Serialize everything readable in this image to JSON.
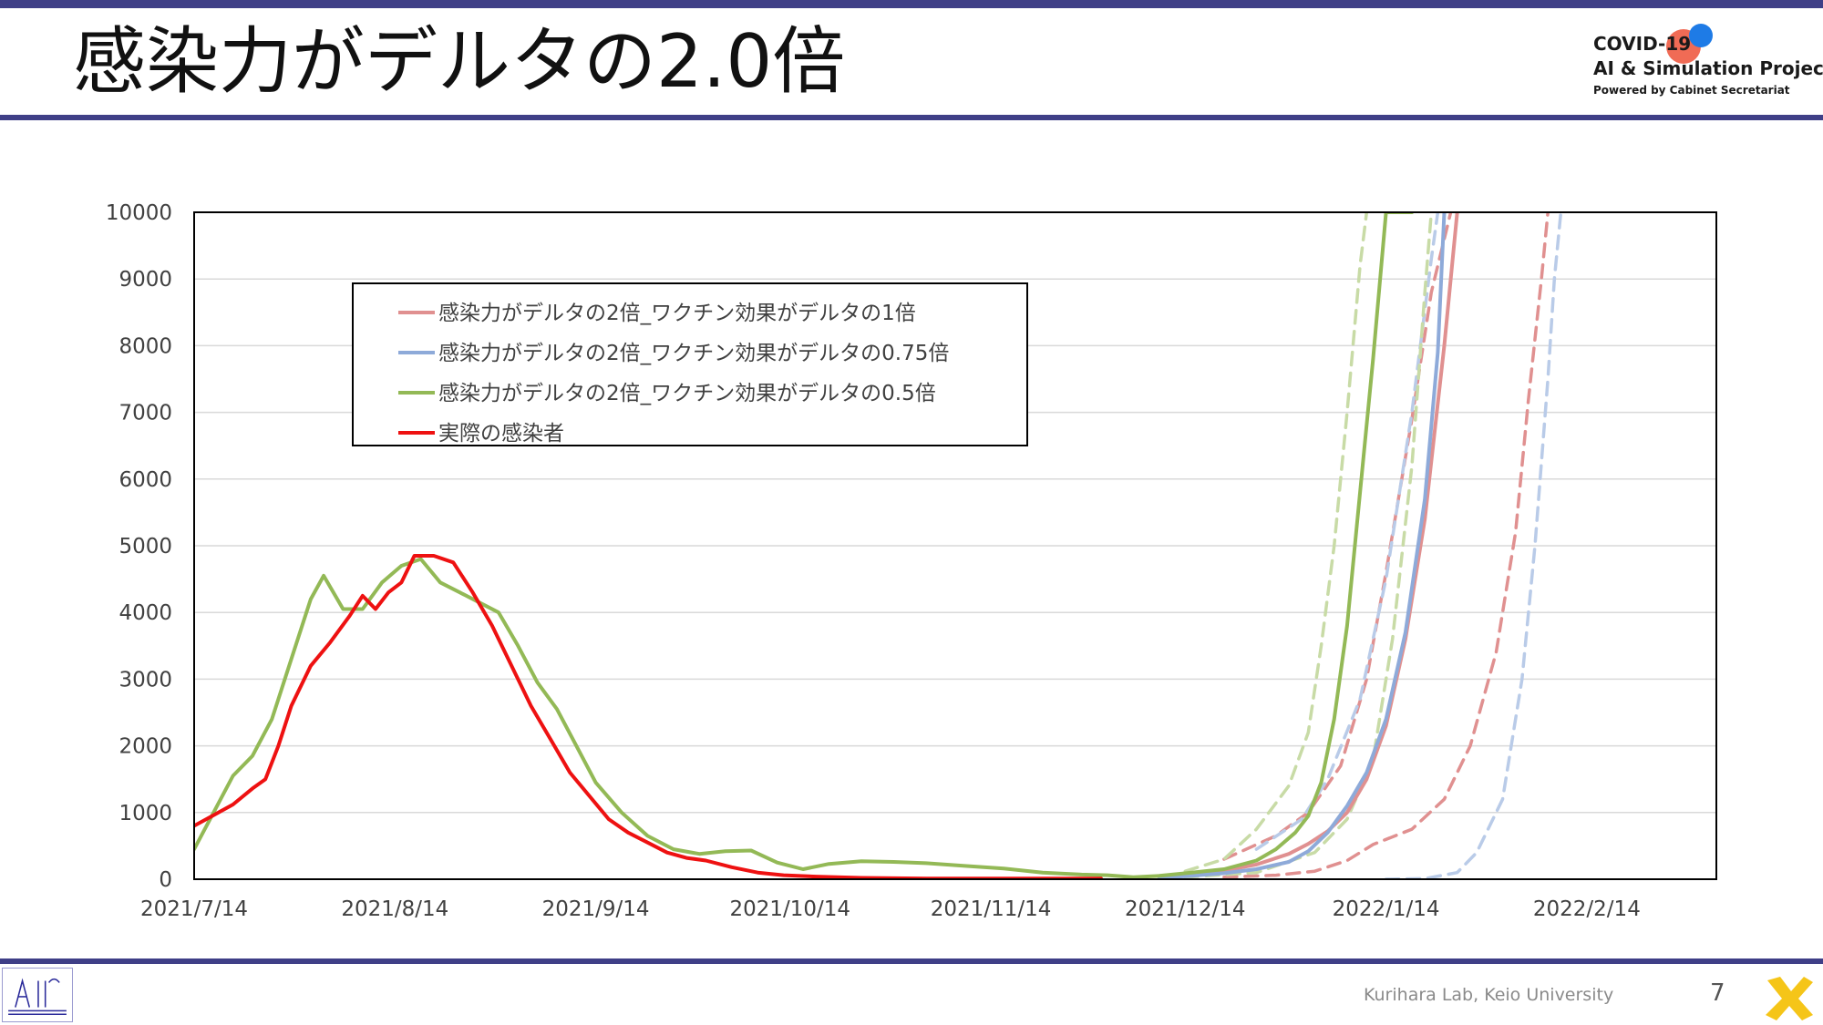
{
  "slide": {
    "title": "感染力がデルタの2.0倍",
    "page_number": "7",
    "footer_credit": "Kurihara Lab, Keio University",
    "logo": {
      "line1": "COVID-19",
      "line2": "AI & Simulation Project",
      "line3": "Powered by Cabinet Secretariat"
    },
    "colors": {
      "accent_bar": "#3f3f87",
      "logo_red": "#f06b55",
      "logo_blue": "#1e7be6",
      "corner_mark": "#f5c518"
    }
  },
  "chart_data": {
    "type": "line",
    "title": "",
    "xlabel": "",
    "ylabel": "",
    "ylim": [
      0,
      10000
    ],
    "yticks": [
      "0",
      "1000",
      "2000",
      "3000",
      "4000",
      "5000",
      "6000",
      "7000",
      "8000",
      "9000",
      "10000"
    ],
    "xticks": [
      "2021/7/14",
      "2021/8/14",
      "2021/9/14",
      "2021/10/14",
      "2021/11/14",
      "2021/12/14",
      "2022/1/14",
      "2022/2/14"
    ],
    "xlim": [
      "2021/7/14",
      "2022/3/6"
    ],
    "grid": "horizontal",
    "legend_position": "upper-left",
    "series": [
      {
        "name": "感染力がデルタの2倍_ワクチン効果がデルタの1倍",
        "color": "#e09090",
        "style": "solid",
        "x": [
          "2021/12/10",
          "2021/12/15",
          "2021/12/20",
          "2021/12/25",
          "2021/12/30",
          "2022/1/2",
          "2022/1/5",
          "2022/1/8",
          "2022/1/11",
          "2022/1/14",
          "2022/1/17",
          "2022/1/20",
          "2022/1/23",
          "2022/1/25"
        ],
        "y": [
          20,
          60,
          130,
          220,
          380,
          530,
          720,
          1000,
          1500,
          2300,
          3600,
          5400,
          8000,
          10000
        ]
      },
      {
        "name": "感染力がデルタの2倍_ワクチン効果がデルタの0.75倍",
        "color": "#8eaad9",
        "style": "solid",
        "x": [
          "2021/12/10",
          "2021/12/15",
          "2021/12/20",
          "2021/12/25",
          "2021/12/30",
          "2022/1/2",
          "2022/1/5",
          "2022/1/8",
          "2022/1/11",
          "2022/1/14",
          "2022/1/17",
          "2022/1/20",
          "2022/1/22",
          "2022/1/23"
        ],
        "y": [
          20,
          50,
          90,
          150,
          260,
          420,
          700,
          1100,
          1600,
          2400,
          3700,
          5700,
          7900,
          10000
        ]
      },
      {
        "name": "感染力がデルタの2倍_ワクチン効果がデルタの0.5倍",
        "color": "#93b956",
        "style": "solid",
        "x": [
          "2021/7/14",
          "2021/7/17",
          "2021/7/20",
          "2021/7/23",
          "2021/7/26",
          "2021/7/29",
          "2021/8/1",
          "2021/8/3",
          "2021/8/6",
          "2021/8/9",
          "2021/8/12",
          "2021/8/15",
          "2021/8/18",
          "2021/8/21",
          "2021/8/24",
          "2021/8/27",
          "2021/8/30",
          "2021/9/2",
          "2021/9/5",
          "2021/9/8",
          "2021/9/11",
          "2021/9/14",
          "2021/9/18",
          "2021/9/22",
          "2021/9/26",
          "2021/9/30",
          "2021/10/4",
          "2021/10/8",
          "2021/10/12",
          "2021/10/16",
          "2021/10/20",
          "2021/10/25",
          "2021/10/30",
          "2021/11/4",
          "2021/11/10",
          "2021/11/16",
          "2021/11/22",
          "2021/11/28",
          "2021/12/2",
          "2021/12/6",
          "2021/12/10",
          "2021/12/15",
          "2021/12/20",
          "2021/12/25",
          "2021/12/28",
          "2021/12/31",
          "2022/1/2",
          "2022/1/4",
          "2022/1/6",
          "2022/1/8",
          "2022/1/10",
          "2022/1/12",
          "2022/1/14",
          "2022/1/17",
          "2022/1/18"
        ],
        "y": [
          450,
          1000,
          1550,
          1850,
          2400,
          3300,
          4200,
          4550,
          4050,
          4050,
          4450,
          4700,
          4800,
          4450,
          4300,
          4150,
          4000,
          3500,
          2950,
          2550,
          2000,
          1450,
          1000,
          650,
          450,
          380,
          420,
          430,
          250,
          150,
          230,
          270,
          260,
          240,
          200,
          160,
          100,
          70,
          60,
          30,
          50,
          100,
          150,
          280,
          450,
          700,
          950,
          1450,
          2400,
          3800,
          5800,
          7800,
          10000,
          10000,
          10000
        ]
      },
      {
        "name": "実際の感染者",
        "color": "#ee1111",
        "style": "solid",
        "x": [
          "2021/7/14",
          "2021/7/17",
          "2021/7/20",
          "2021/7/23",
          "2021/7/25",
          "2021/7/27",
          "2021/7/29",
          "2021/8/1",
          "2021/8/4",
          "2021/8/7",
          "2021/8/9",
          "2021/8/11",
          "2021/8/13",
          "2021/8/15",
          "2021/8/17",
          "2021/8/20",
          "2021/8/23",
          "2021/8/26",
          "2021/8/29",
          "2021/9/1",
          "2021/9/4",
          "2021/9/7",
          "2021/9/10",
          "2021/9/13",
          "2021/9/16",
          "2021/9/19",
          "2021/9/22",
          "2021/9/25",
          "2021/9/28",
          "2021/10/1",
          "2021/10/5",
          "2021/10/9",
          "2021/10/13",
          "2021/10/18",
          "2021/10/25",
          "2021/11/5",
          "2021/11/15",
          "2021/11/25",
          "2021/12/1"
        ],
        "y": [
          800,
          960,
          1120,
          1360,
          1500,
          2000,
          2600,
          3200,
          3550,
          3950,
          4250,
          4050,
          4300,
          4450,
          4850,
          4850,
          4750,
          4300,
          3800,
          3200,
          2600,
          2100,
          1600,
          1250,
          900,
          700,
          550,
          400,
          320,
          280,
          180,
          100,
          60,
          40,
          20,
          10,
          10,
          10,
          10
        ]
      },
      {
        "name": "",
        "color": "#e09090",
        "style": "dashed",
        "x": [
          "2021/12/20",
          "2021/12/28",
          "2022/1/2",
          "2022/1/7",
          "2022/1/11",
          "2022/1/14",
          "2022/1/18",
          "2022/1/21",
          "2022/1/24"
        ],
        "y": [
          300,
          650,
          1000,
          1700,
          3000,
          4600,
          6900,
          8800,
          10000
        ]
      },
      {
        "name": "",
        "color": "#e09090",
        "style": "dashed",
        "x": [
          "2021/12/20",
          "2021/12/28",
          "2022/1/3",
          "2022/1/8",
          "2022/1/12",
          "2022/1/18",
          "2022/1/23",
          "2022/1/27",
          "2022/1/31",
          "2022/2/3",
          "2022/2/5",
          "2022/2/7",
          "2022/2/8"
        ],
        "y": [
          30,
          60,
          120,
          280,
          520,
          750,
          1200,
          2000,
          3400,
          5200,
          7200,
          9000,
          10000
        ]
      },
      {
        "name": "",
        "color": "#b9cbe8",
        "style": "dashed",
        "x": [
          "2021/12/25",
          "2022/1/1",
          "2022/1/5",
          "2022/1/10",
          "2022/1/14",
          "2022/1/18",
          "2022/1/21",
          "2022/1/22"
        ],
        "y": [
          450,
          900,
          1500,
          2700,
          4500,
          7000,
          9300,
          10000
        ]
      },
      {
        "name": "",
        "color": "#b9cbe8",
        "style": "dashed",
        "x": [
          "2022/1/14",
          "2022/1/20",
          "2022/1/25",
          "2022/1/28",
          "2022/2/1",
          "2022/2/4",
          "2022/2/6",
          "2022/2/8",
          "2022/2/9",
          "2022/2/10"
        ],
        "y": [
          0,
          10,
          100,
          400,
          1200,
          3000,
          5000,
          7500,
          9000,
          10000
        ]
      },
      {
        "name": "",
        "color": "#c8dba6",
        "style": "dashed",
        "x": [
          "2021/12/14",
          "2021/12/20",
          "2021/12/25",
          "2021/12/30",
          "2022/1/2",
          "2022/1/4",
          "2022/1/6",
          "2022/1/8",
          "2022/1/10",
          "2022/1/11"
        ],
        "y": [
          120,
          300,
          750,
          1400,
          2200,
          3500,
          5000,
          7000,
          9200,
          10000
        ]
      },
      {
        "name": "",
        "color": "#c8dba6",
        "style": "dashed",
        "x": [
          "2021/12/14",
          "2021/12/25",
          "2022/1/3",
          "2022/1/8",
          "2022/1/12",
          "2022/1/15",
          "2022/1/18",
          "2022/1/20",
          "2022/1/21"
        ],
        "y": [
          30,
          100,
          400,
          900,
          1800,
          3600,
          6200,
          8800,
          10000
        ]
      }
    ]
  }
}
